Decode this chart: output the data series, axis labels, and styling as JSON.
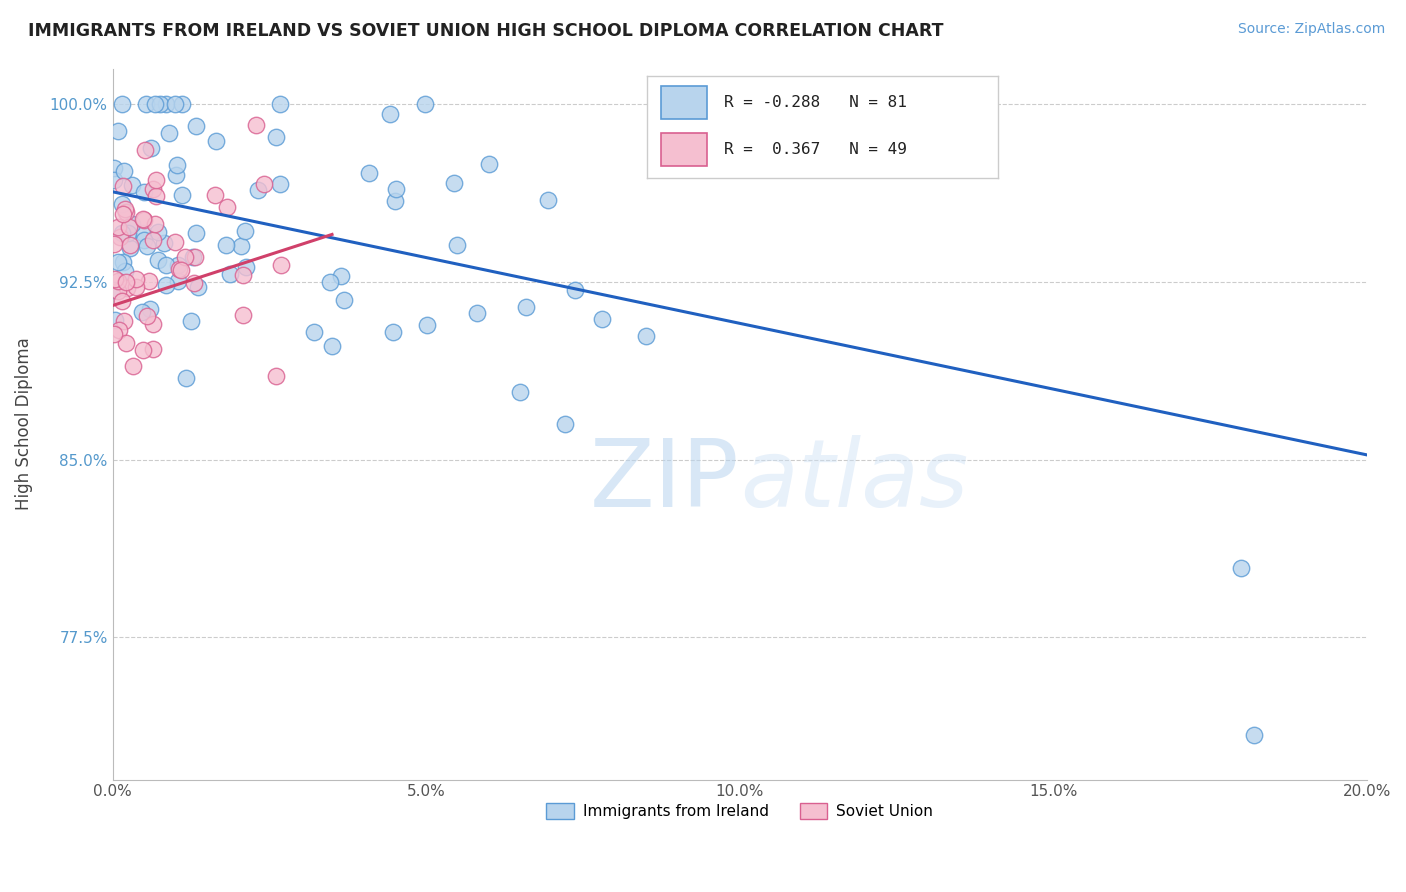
{
  "title": "IMMIGRANTS FROM IRELAND VS SOVIET UNION HIGH SCHOOL DIPLOMA CORRELATION CHART",
  "source": "Source: ZipAtlas.com",
  "ylabel": "High School Diploma",
  "xlim": [
    0.0,
    0.2
  ],
  "ylim": [
    0.715,
    1.015
  ],
  "xtick_labels": [
    "0.0%",
    "",
    "5.0%",
    "",
    "10.0%",
    "",
    "15.0%",
    "",
    "20.0%"
  ],
  "xtick_vals": [
    0.0,
    0.025,
    0.05,
    0.075,
    0.1,
    0.125,
    0.15,
    0.175,
    0.2
  ],
  "xtick_display": [
    "0.0%",
    "5.0%",
    "10.0%",
    "15.0%",
    "20.0%"
  ],
  "xtick_display_vals": [
    0.0,
    0.05,
    0.1,
    0.15,
    0.2
  ],
  "ytick_labels": [
    "77.5%",
    "85.0%",
    "92.5%",
    "100.0%"
  ],
  "ytick_vals": [
    0.775,
    0.85,
    0.925,
    1.0
  ],
  "ireland_R": -0.288,
  "ireland_N": 81,
  "soviet_R": 0.367,
  "soviet_N": 49,
  "ireland_color": "#b8d4ed",
  "ireland_edge": "#5b9bd5",
  "soviet_color": "#f5bfd0",
  "soviet_edge": "#d96090",
  "ireland_line_color": "#2060c0",
  "soviet_line_color": "#d0406a",
  "watermark_color": "#d0e8f8",
  "background_color": "#ffffff",
  "ireland_line_x0": 0.0,
  "ireland_line_y0": 0.963,
  "ireland_line_x1": 0.2,
  "ireland_line_y1": 0.852,
  "soviet_line_x0": 0.0,
  "soviet_line_y0": 0.915,
  "soviet_line_x1": 0.035,
  "soviet_line_y1": 0.945
}
